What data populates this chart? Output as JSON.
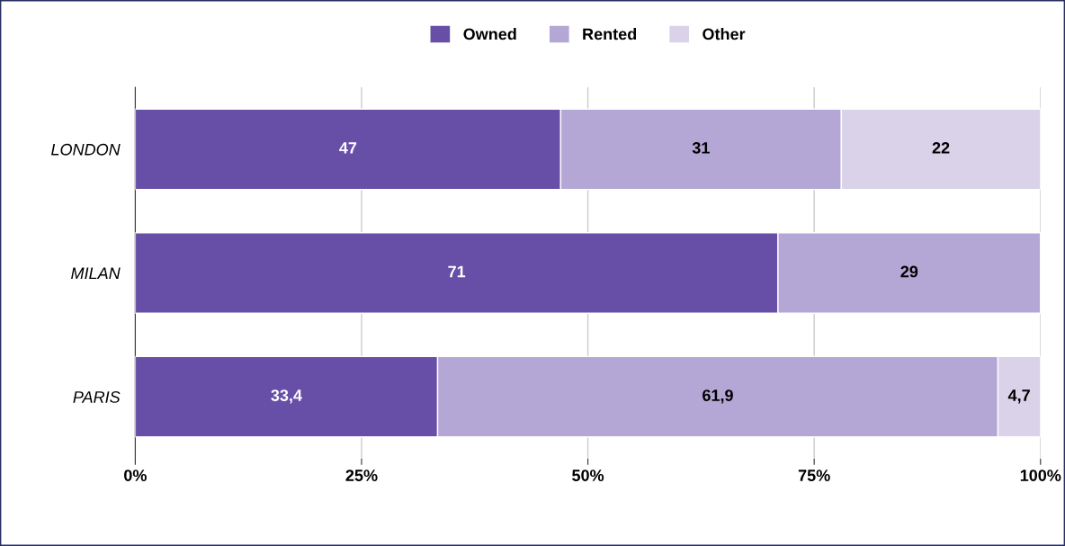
{
  "chart_data": {
    "type": "bar",
    "orientation": "horizontal",
    "stacked": true,
    "categories": [
      "LONDON",
      "MILAN",
      "PARIS"
    ],
    "series": [
      {
        "name": "Owned",
        "color": "#674ea7",
        "values": [
          47,
          71,
          33.4
        ],
        "value_labels": [
          "47",
          "71",
          "33,4"
        ]
      },
      {
        "name": "Rented",
        "color": "#b4a7d6",
        "values": [
          31,
          29,
          61.9
        ],
        "value_labels": [
          "31",
          "29",
          "61,9"
        ]
      },
      {
        "name": "Other",
        "color": "#d9d2e9",
        "values": [
          22,
          null,
          4.7
        ],
        "value_labels": [
          "22",
          null,
          "4,7"
        ]
      }
    ],
    "xlim": [
      0,
      100
    ],
    "xticks": [
      {
        "value": 0,
        "label": "0%"
      },
      {
        "value": 25,
        "label": "25%"
      },
      {
        "value": 50,
        "label": "50%"
      },
      {
        "value": 75,
        "label": "75%"
      },
      {
        "value": 100,
        "label": "100%"
      }
    ],
    "grid": "x",
    "legend": "top"
  }
}
